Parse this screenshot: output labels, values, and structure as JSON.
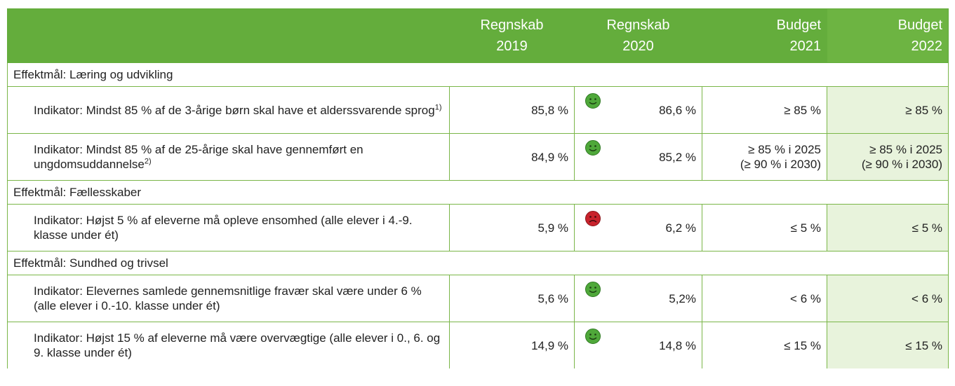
{
  "header": {
    "columns": [
      {
        "label": "Regnskab",
        "year": "2019"
      },
      {
        "label": "Regnskab",
        "year": "2020"
      },
      {
        "label": "Budget",
        "year": "2021"
      },
      {
        "label": "Budget",
        "year": "2022"
      }
    ]
  },
  "sections": [
    {
      "title": "Effektmål: Læring og udvikling",
      "rows": [
        {
          "indicator": "Indikator: Mindst 85 % af de 3-årige børn skal have et alderssvarende sprog",
          "note": "1)",
          "values": [
            [
              "85,8 %"
            ],
            [
              "86,6 %"
            ],
            [
              "≥ 85 %"
            ],
            [
              "≥ 85 %"
            ]
          ]
        },
        {
          "indicator": "Indikator: Mindst 85 % af de 25-årige skal have gennemført en ungdomsuddannelse",
          "note": "2)",
          "values": [
            [
              "84,9 %"
            ],
            [
              "85,2 %"
            ],
            [
              "≥ 85 % i 2025",
              "(≥ 90 % i 2030)"
            ],
            [
              "≥ 85 % i 2025",
              "(≥ 90 % i 2030)"
            ]
          ]
        }
      ]
    },
    {
      "title": "Effektmål: Fællesskaber",
      "rows": [
        {
          "indicator": "Indikator: Højst 5 % af eleverne må opleve ensomhed (alle elever i 4.-9. klasse under ét)",
          "values": [
            [
              "5,9 %"
            ],
            [
              "6,2 %"
            ],
            [
              "≤ 5 %"
            ],
            [
              "≤ 5 %"
            ]
          ]
        }
      ]
    },
    {
      "title": "Effektmål: Sundhed og trivsel",
      "rows": [
        {
          "indicator": "Indikator: Elevernes samlede gennemsnitlige fravær skal være under 6 % (alle elever i 0.-10. klasse under ét)",
          "values": [
            [
              "5,6 %"
            ],
            [
              "5,2%"
            ],
            [
              "< 6 %"
            ],
            [
              "< 6 %"
            ]
          ]
        },
        {
          "indicator": "Indikator: Højst 15 % af eleverne må være overvægtige (alle elever i 0., 6. og 9. klasse under ét)",
          "values": [
            [
              "14,9 %"
            ],
            [
              "14,8 %"
            ],
            [
              "≤ 15 %"
            ],
            [
              "≤ 15 %"
            ]
          ]
        }
      ]
    }
  ]
}
